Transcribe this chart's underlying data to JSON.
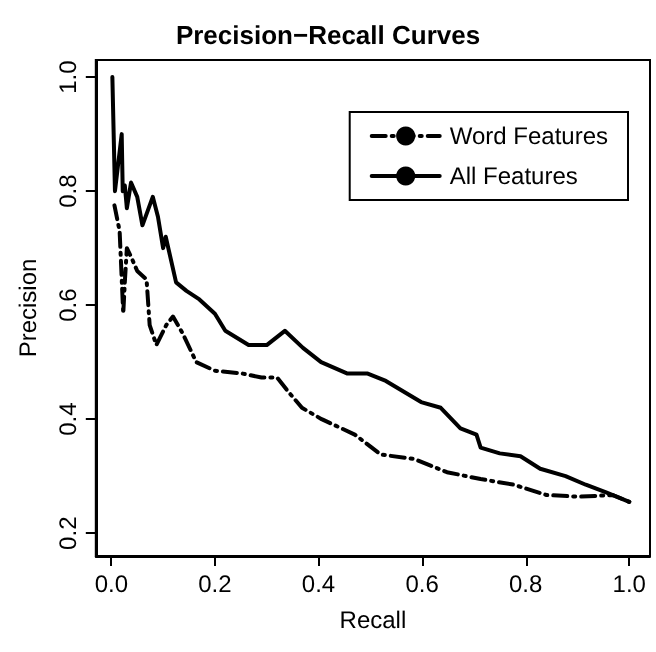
{
  "chart_data": {
    "type": "line",
    "title": "Precision−Recall Curves",
    "xlabel": "Recall",
    "ylabel": "Precision",
    "xlim": [
      -0.03,
      1.04
    ],
    "ylim": [
      0.16,
      1.03
    ],
    "xticks": [
      {
        "value": 0,
        "label": "0.0"
      },
      0.2,
      0.4,
      0.6,
      0.8,
      {
        "value": 1,
        "label": "1.0"
      }
    ],
    "yticks": [
      0.2,
      0.4,
      0.6,
      0.8,
      {
        "value": 1,
        "label": "1.0"
      }
    ],
    "grid": false,
    "legend": "top right",
    "marker": "none",
    "series": [
      {
        "name": "Word Features",
        "color": "#000000",
        "line_style": "dashed",
        "x": [
          0.006,
          0.016,
          0.023,
          0.026,
          0.03,
          0.038,
          0.05,
          0.068,
          0.074,
          0.087,
          0.106,
          0.119,
          0.138,
          0.164,
          0.2,
          0.253,
          0.29,
          0.32,
          0.34,
          0.368,
          0.406,
          0.444,
          0.47,
          0.52,
          0.585,
          0.648,
          0.713,
          0.777,
          0.84,
          0.904,
          0.968,
          1.0
        ],
        "values": [
          0.775,
          0.73,
          0.585,
          0.64,
          0.7,
          0.685,
          0.66,
          0.645,
          0.565,
          0.53,
          0.565,
          0.58,
          0.55,
          0.5,
          0.485,
          0.48,
          0.473,
          0.473,
          0.45,
          0.42,
          0.4,
          0.384,
          0.373,
          0.338,
          0.33,
          0.307,
          0.295,
          0.285,
          0.267,
          0.264,
          0.267,
          0.255
        ]
      },
      {
        "name": "All Features",
        "color": "#000000",
        "line_style": "solid",
        "x": [
          0.002,
          0.007,
          0.02,
          0.022,
          0.026,
          0.03,
          0.038,
          0.05,
          0.06,
          0.08,
          0.09,
          0.1,
          0.105,
          0.125,
          0.145,
          0.17,
          0.2,
          0.22,
          0.265,
          0.3,
          0.335,
          0.37,
          0.405,
          0.456,
          0.495,
          0.53,
          0.598,
          0.636,
          0.674,
          0.705,
          0.713,
          0.75,
          0.79,
          0.828,
          0.877,
          0.916,
          0.954,
          1.0
        ],
        "values": [
          1.0,
          0.8,
          0.9,
          0.8,
          0.81,
          0.77,
          0.815,
          0.79,
          0.74,
          0.79,
          0.755,
          0.7,
          0.72,
          0.64,
          0.625,
          0.61,
          0.585,
          0.555,
          0.53,
          0.53,
          0.555,
          0.525,
          0.5,
          0.48,
          0.48,
          0.467,
          0.43,
          0.42,
          0.384,
          0.373,
          0.35,
          0.34,
          0.335,
          0.313,
          0.3,
          0.285,
          0.272,
          0.255
        ]
      }
    ]
  }
}
